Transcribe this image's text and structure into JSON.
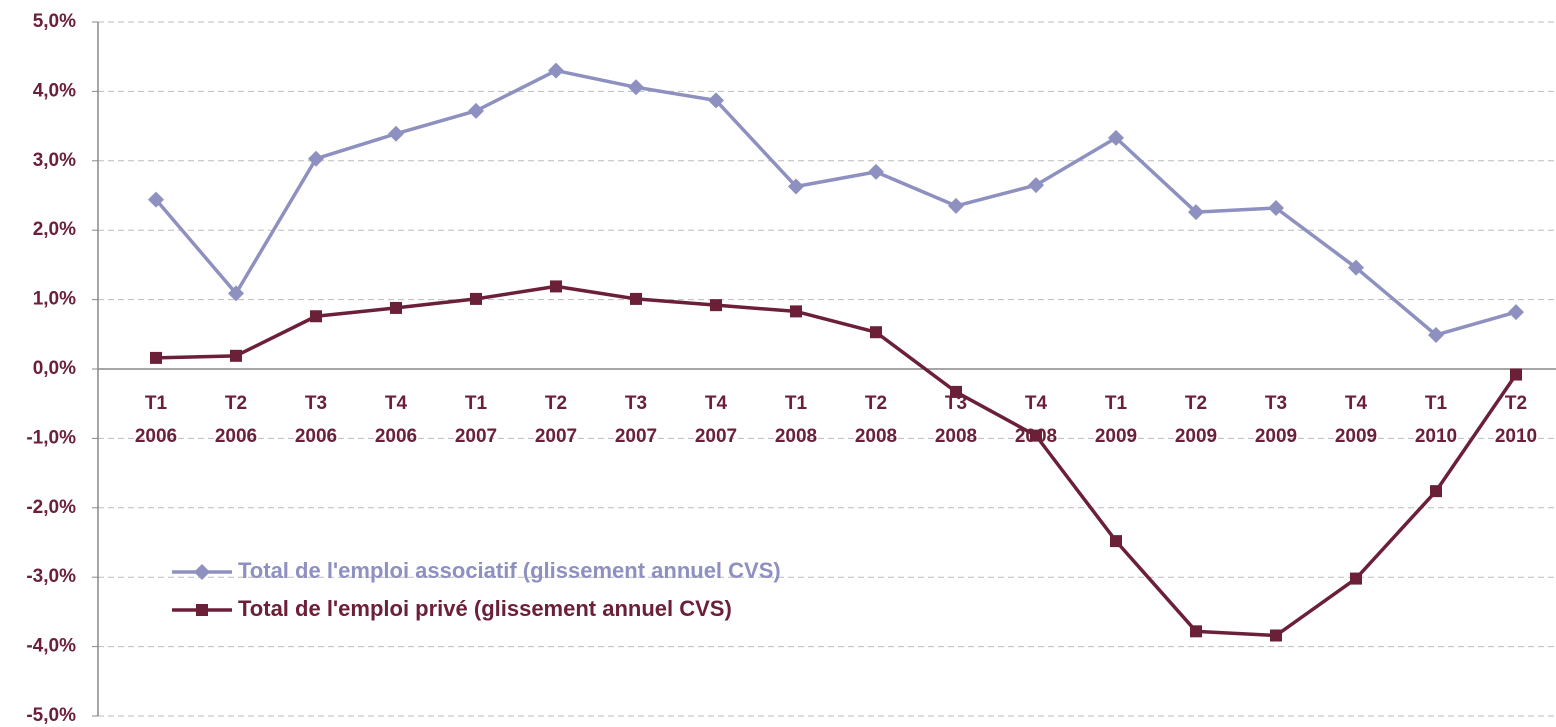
{
  "chart_data": {
    "type": "line",
    "categories": [
      "T1\n2006",
      "T2\n2006",
      "T3\n2006",
      "T4\n2006",
      "T1\n2007",
      "T2\n2007",
      "T3\n2007",
      "T4\n2007",
      "T1\n2008",
      "T2\n2008",
      "T3\n2008",
      "T4\n2008",
      "T1\n2009",
      "T2\n2009",
      "T3\n2009",
      "T4\n2009",
      "T1\n2010",
      "T2\n2010"
    ],
    "series": [
      {
        "name": "Total de l'emploi associatif (glissement annuel CVS)",
        "color": "#8e90c0",
        "marker": "diamond",
        "values": [
          2.44,
          1.09,
          3.03,
          3.39,
          3.72,
          4.3,
          4.06,
          3.87,
          2.63,
          2.84,
          2.35,
          2.65,
          3.33,
          2.26,
          2.32,
          1.46,
          0.49,
          0.82
        ]
      },
      {
        "name": "Total de l'emploi privé (glissement annuel CVS)",
        "color": "#6b2038",
        "marker": "square",
        "values": [
          0.16,
          0.19,
          0.76,
          0.88,
          1.01,
          1.19,
          1.01,
          0.92,
          0.83,
          0.53,
          -0.33,
          -0.96,
          -2.48,
          -3.78,
          -3.84,
          -3.02,
          -1.76,
          -0.08
        ]
      }
    ],
    "ylim": [
      -5,
      5
    ],
    "yticks": [
      {
        "value": -5,
        "label": "-5,0%"
      },
      {
        "value": -4,
        "label": "-4,0%"
      },
      {
        "value": -3,
        "label": "-3,0%"
      },
      {
        "value": -2,
        "label": "-2,0%"
      },
      {
        "value": -1,
        "label": "-1,0%"
      },
      {
        "value": 0,
        "label": "0,0%"
      },
      {
        "value": 1,
        "label": "1,0%"
      },
      {
        "value": 2,
        "label": "2,0%"
      },
      {
        "value": 3,
        "label": "3,0%"
      },
      {
        "value": 4,
        "label": "4,0%"
      },
      {
        "value": 5,
        "label": "5,0%"
      }
    ],
    "grid": true
  }
}
